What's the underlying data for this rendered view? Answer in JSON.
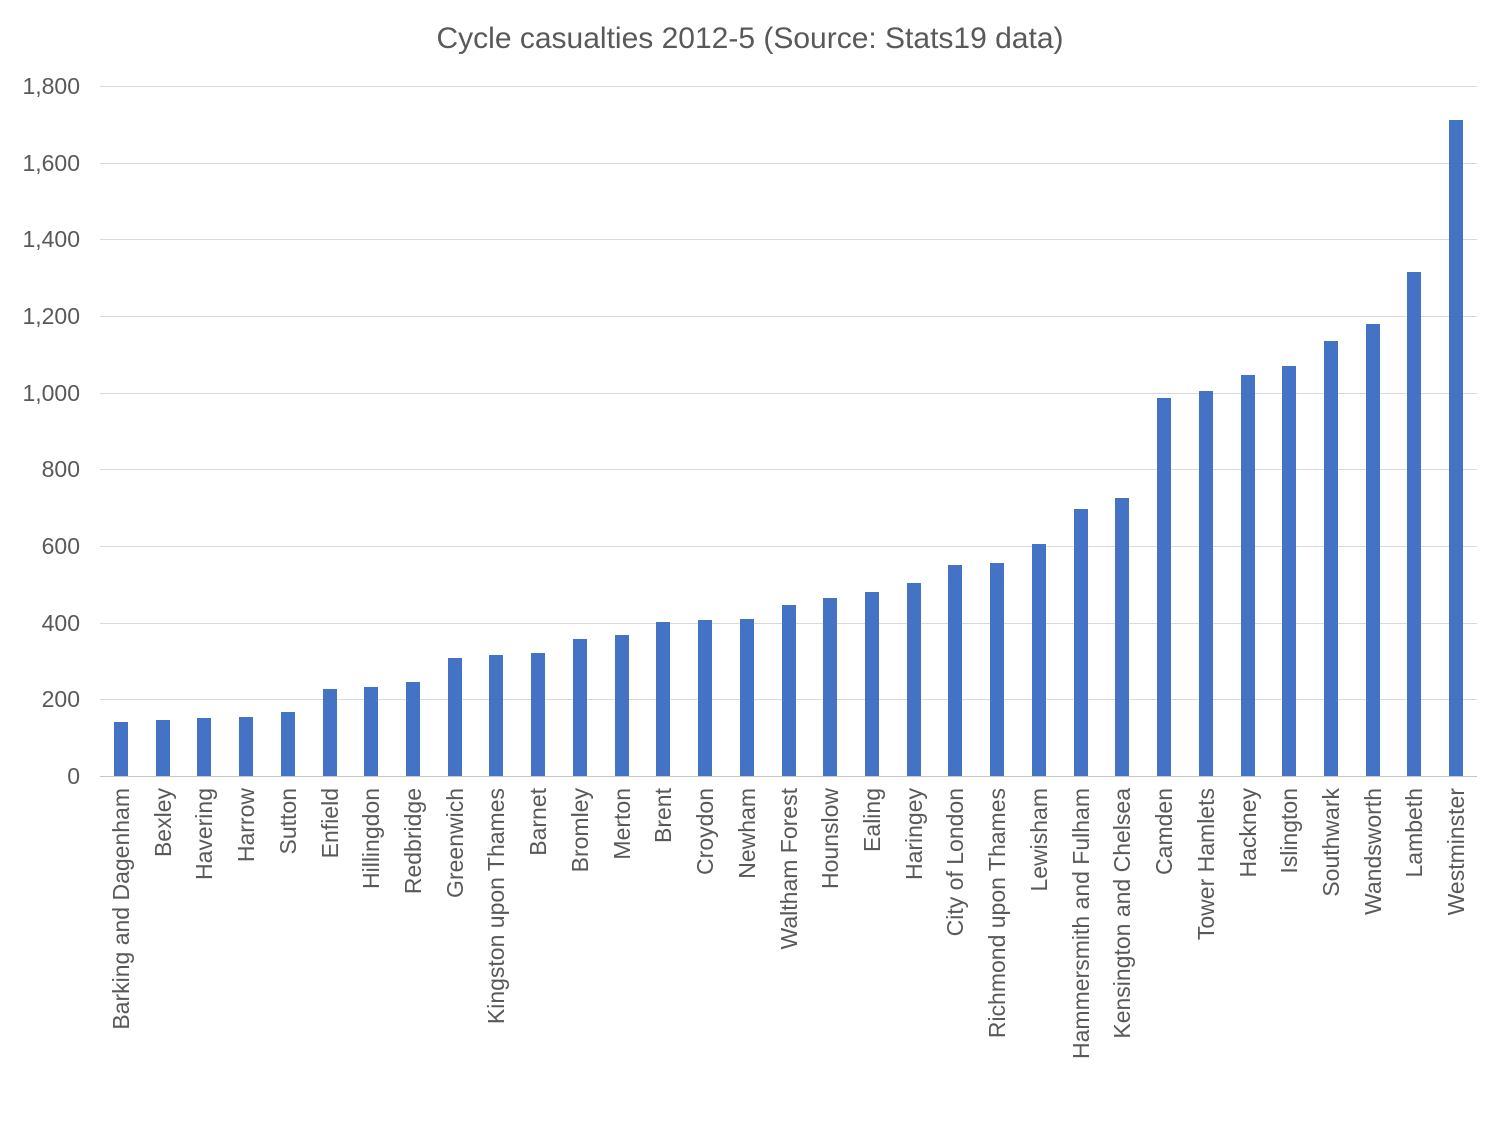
{
  "chart_data": {
    "type": "bar",
    "title": "Cycle casualties 2012-5 (Source: Stats19 data)",
    "xlabel": "",
    "ylabel": "",
    "ylim": [
      0,
      1800
    ],
    "ytick_step": 200,
    "grid": true,
    "legend": "none",
    "bar_color": "#4472C4",
    "gridline_color": "#D9D9D9",
    "axis_line_color": "#C6C6C6",
    "text_color": "#595959",
    "categories": [
      "Barking and Dagenham",
      "Bexley",
      "Havering",
      "Harrow",
      "Sutton",
      "Enfield",
      "Hillingdon",
      "Redbridge",
      "Greenwich",
      "Kingston upon Thames",
      "Barnet",
      "Bromley",
      "Merton",
      "Brent",
      "Croydon",
      "Newham",
      "Waltham Forest",
      "Hounslow",
      "Ealing",
      "Haringey",
      "City of London",
      "Richmond upon Thames",
      "Lewisham",
      "Hammersmith and Fulham",
      "Kensington and Chelsea",
      "Camden",
      "Tower Hamlets",
      "Hackney",
      "Islington",
      "Southwark",
      "Wandsworth",
      "Lambeth",
      "Westminster"
    ],
    "values": [
      140,
      147,
      151,
      155,
      168,
      228,
      231,
      244,
      307,
      315,
      320,
      357,
      368,
      401,
      406,
      409,
      447,
      464,
      481,
      504,
      550,
      556,
      605,
      696,
      725,
      985,
      1004,
      1046,
      1070,
      1134,
      1180,
      1314,
      1711
    ]
  }
}
